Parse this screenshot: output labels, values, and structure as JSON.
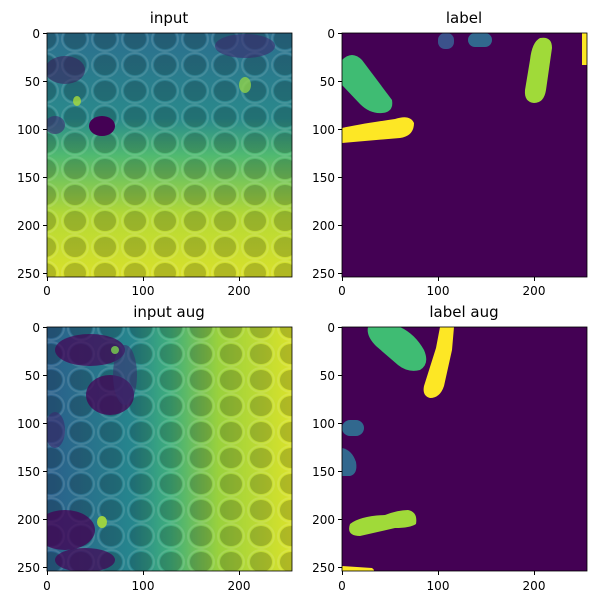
{
  "panels": [
    {
      "title": "input",
      "kind": "intensity",
      "xticks": [
        "0",
        "100",
        "200"
      ],
      "yticks": [
        "0",
        "50",
        "100",
        "150",
        "200",
        "250"
      ]
    },
    {
      "title": "label",
      "kind": "segmentation",
      "xticks": [
        "0",
        "100",
        "200"
      ],
      "yticks": [
        "0",
        "50",
        "100",
        "150",
        "200",
        "250"
      ]
    },
    {
      "title": "input aug",
      "kind": "intensity",
      "xticks": [
        "0",
        "100",
        "200"
      ],
      "yticks": [
        "0",
        "50",
        "100",
        "150",
        "200",
        "250"
      ]
    },
    {
      "title": "label aug",
      "kind": "segmentation",
      "xticks": [
        "0",
        "100",
        "200"
      ],
      "yticks": [
        "0",
        "50",
        "100",
        "150",
        "200",
        "250"
      ]
    }
  ],
  "colors": {
    "background_label": "#440154",
    "yellow": "#fde725",
    "light_green": "#a0da39",
    "green": "#3fbc73",
    "blue": "#31688e",
    "dark_teal": "#20908d",
    "teal": "#29af7f",
    "dark_blue": "#3b528b",
    "deep_purple": "#472d7b"
  }
}
